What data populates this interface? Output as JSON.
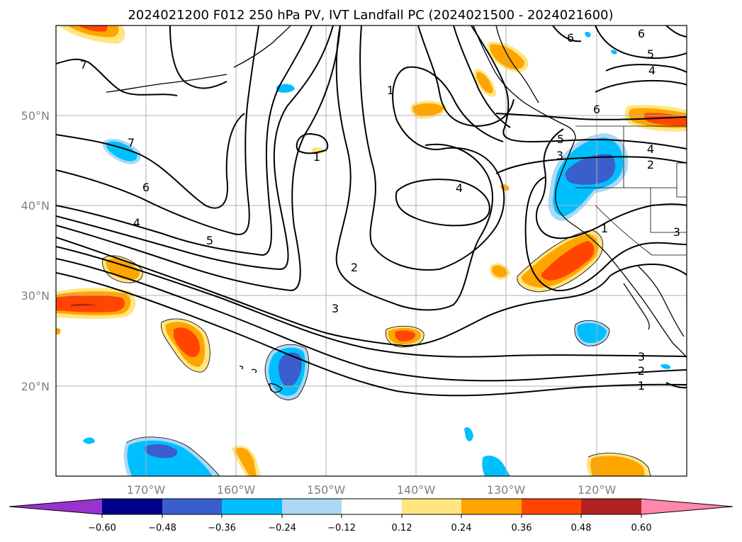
{
  "title": "2024021200 F012 250 hPa PV, IVT Landfall PC (2024021500 - 2024021600)",
  "lon_ticks": [
    "170°W",
    "160°W",
    "150°W",
    "140°W",
    "130°W",
    "120°W"
  ],
  "lat_ticks": [
    "50°N",
    "40°N",
    "30°N",
    "20°N"
  ],
  "colorbar": {
    "ticks": [
      "−0.60",
      "−0.48",
      "−0.36",
      "−0.24",
      "−0.12",
      "0.12",
      "0.24",
      "0.36",
      "0.48",
      "0.60"
    ],
    "colors": [
      "#9933cc",
      "#00008b",
      "#3a5fcd",
      "#00bfff",
      "#add8f5",
      "#ffffff",
      "#ffe680",
      "#ffa500",
      "#ff4500",
      "#b22222",
      "#ff88aa"
    ]
  },
  "contour_labels": [
    "7",
    "7",
    "6",
    "4",
    "5",
    "1",
    "1",
    "2",
    "3",
    "4",
    "6",
    "6",
    "5",
    "4",
    "6",
    "4",
    "2",
    "3",
    "5",
    "1",
    "3",
    "3",
    "2",
    "1"
  ],
  "colors": {
    "pos_light": "#ffe680",
    "pos_mid": "#ffa500",
    "pos_strong": "#ff4500",
    "pos_max": "#b22222",
    "neg_light": "#add8f5",
    "neg_mid": "#00bfff",
    "neg_strong": "#3a5fcd"
  }
}
